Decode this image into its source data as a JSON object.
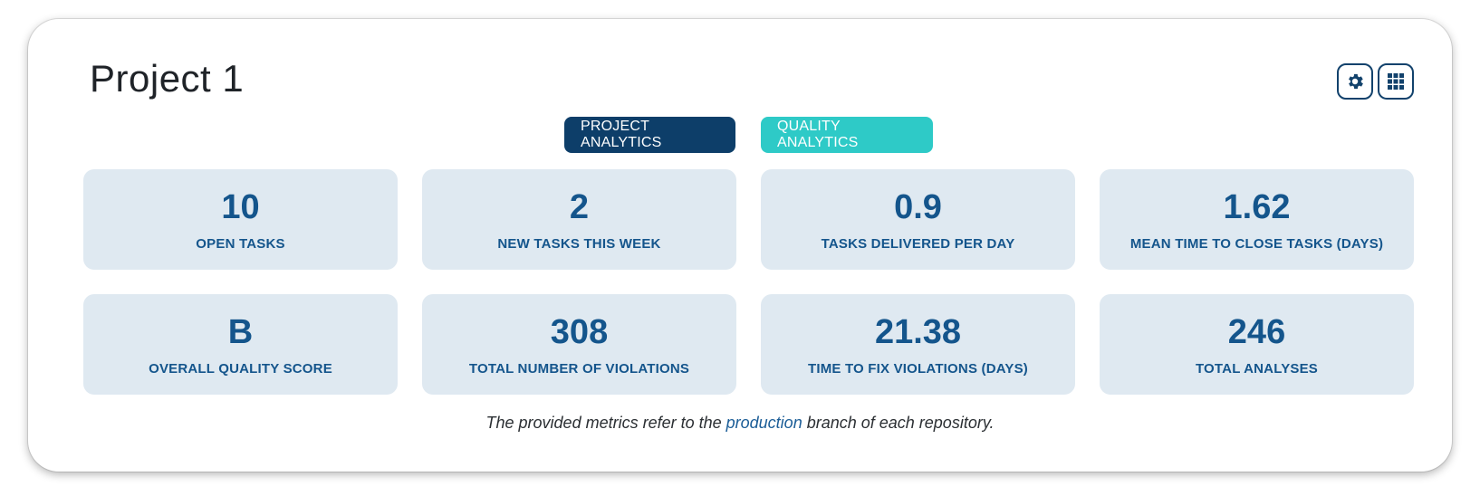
{
  "header": {
    "title": "Project 1"
  },
  "toolbar": {
    "settings_icon": "gear-icon",
    "grid_icon": "apps-grid-icon"
  },
  "tabs": [
    {
      "label": "PROJECT ANALYTICS",
      "active": true,
      "color": "#0d3e69"
    },
    {
      "label": "QUALITY ANALYTICS",
      "active": false,
      "color": "#2ecac7"
    }
  ],
  "metrics": [
    {
      "value": "10",
      "label": "OPEN TASKS"
    },
    {
      "value": "2",
      "label": "NEW TASKS THIS WEEK"
    },
    {
      "value": "0.9",
      "label": "TASKS DELIVERED PER DAY"
    },
    {
      "value": "1.62",
      "label": "MEAN TIME TO CLOSE TASKS (DAYS)"
    },
    {
      "value": "B",
      "label": "OVERALL QUALITY SCORE"
    },
    {
      "value": "308",
      "label": "TOTAL NUMBER OF VIOLATIONS"
    },
    {
      "value": "21.38",
      "label": "TIME TO FIX VIOLATIONS (DAYS)"
    },
    {
      "value": "246",
      "label": "TOTAL ANALYSES"
    }
  ],
  "footnote": {
    "prefix": "The provided metrics refer to the ",
    "link": "production",
    "suffix": " branch of each repository."
  },
  "colors": {
    "card_bg": "#dfe9f1",
    "metric_text": "#14558c",
    "accent_dark": "#0d3e69",
    "accent_teal": "#2ecac7"
  }
}
